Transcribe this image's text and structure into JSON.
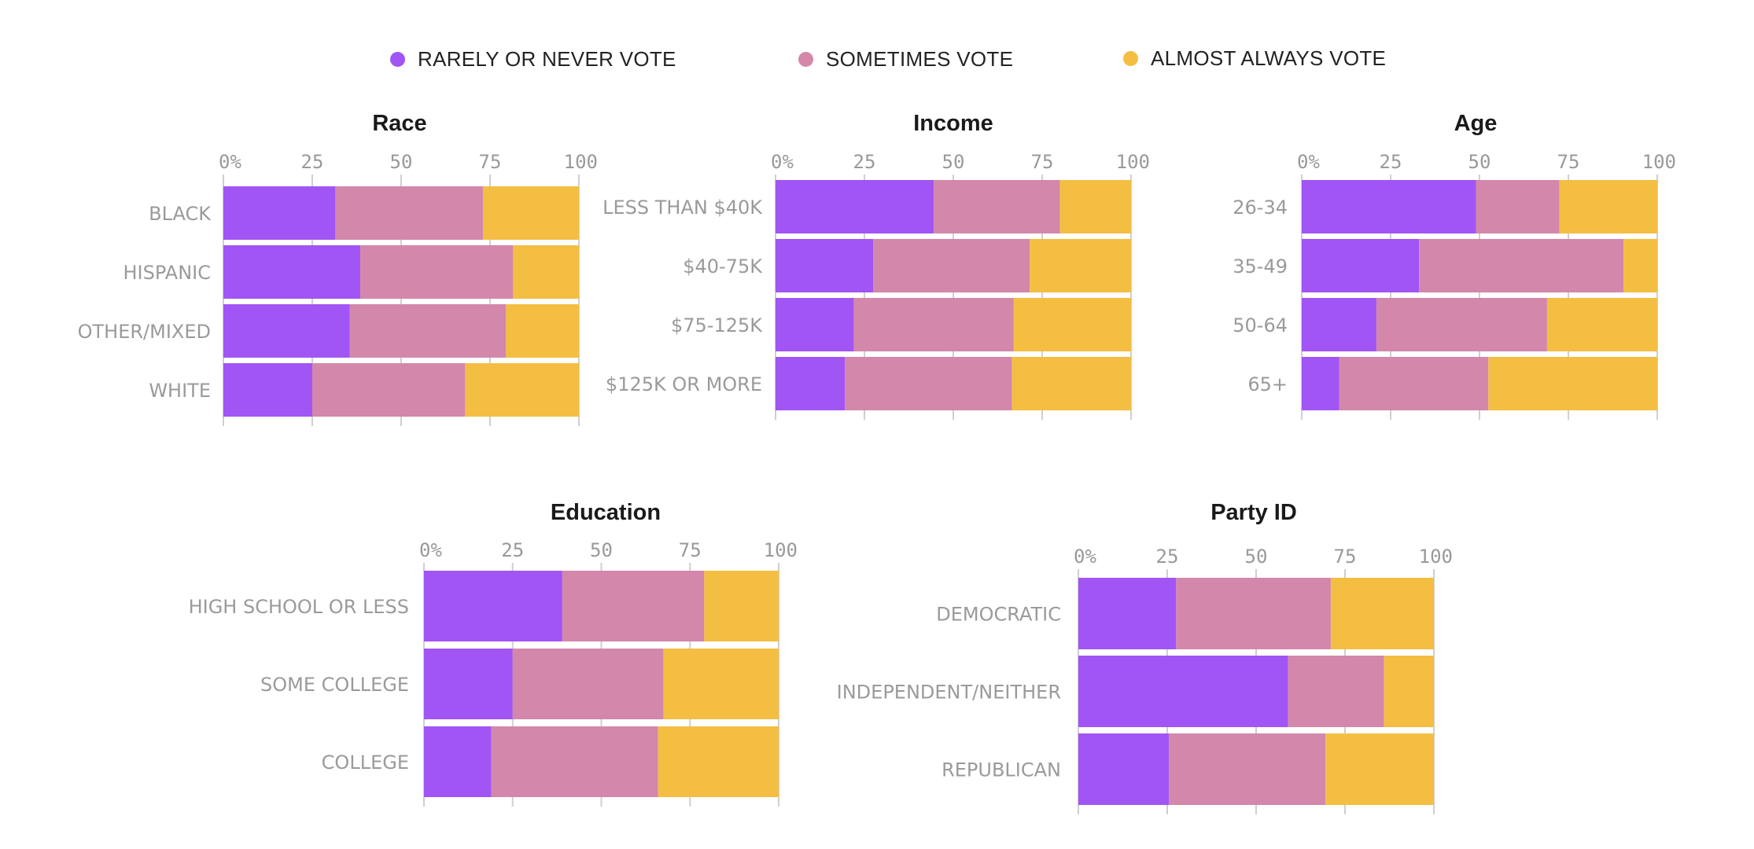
{
  "legend": [
    {
      "label": "RARELY OR NEVER VOTE",
      "color": "#a155f5"
    },
    {
      "label": "SOMETIMES VOTE",
      "color": "#d387ab"
    },
    {
      "label": "ALMOST ALWAYS VOTE",
      "color": "#f4be42"
    }
  ],
  "chart_data": [
    {
      "type": "bar",
      "stacked": true,
      "orientation": "horizontal",
      "title": "Race",
      "ticks": [
        "0%",
        "25",
        "50",
        "75",
        "100"
      ],
      "xlim": [
        0,
        100
      ],
      "categories": [
        "BLACK",
        "HISPANIC",
        "OTHER/MIXED",
        "WHITE"
      ],
      "series": [
        {
          "name": "RARELY OR NEVER VOTE",
          "values": [
            31.5,
            38.5,
            35.5,
            25
          ]
        },
        {
          "name": "SOMETIMES VOTE",
          "values": [
            41.5,
            43,
            44,
            43
          ]
        },
        {
          "name": "ALMOST ALWAYS VOTE",
          "values": [
            27,
            18.5,
            20.5,
            32
          ]
        }
      ]
    },
    {
      "type": "bar",
      "stacked": true,
      "orientation": "horizontal",
      "title": "Income",
      "ticks": [
        "0%",
        "25",
        "50",
        "75",
        "100"
      ],
      "xlim": [
        0,
        100
      ],
      "categories": [
        "LESS THAN $40K",
        "$40-75K",
        "$75-125K",
        "$125K OR MORE"
      ],
      "series": [
        {
          "name": "RARELY OR NEVER VOTE",
          "values": [
            44.5,
            27.5,
            22,
            19.5
          ]
        },
        {
          "name": "SOMETIMES VOTE",
          "values": [
            35.5,
            44,
            45,
            47
          ]
        },
        {
          "name": "ALMOST ALWAYS VOTE",
          "values": [
            20,
            28.5,
            33,
            33.5
          ]
        }
      ]
    },
    {
      "type": "bar",
      "stacked": true,
      "orientation": "horizontal",
      "title": "Age",
      "ticks": [
        "0%",
        "25",
        "50",
        "75",
        "100"
      ],
      "xlim": [
        0,
        100
      ],
      "categories": [
        "26-34",
        "35-49",
        "50-64",
        "65+"
      ],
      "series": [
        {
          "name": "RARELY OR NEVER VOTE",
          "values": [
            49,
            33,
            21,
            10.5
          ]
        },
        {
          "name": "SOMETIMES VOTE",
          "values": [
            23.5,
            57.5,
            48,
            42
          ]
        },
        {
          "name": "ALMOST ALWAYS VOTE",
          "values": [
            27.5,
            9.5,
            31,
            47.5
          ]
        }
      ]
    },
    {
      "type": "bar",
      "stacked": true,
      "orientation": "horizontal",
      "title": "Education",
      "ticks": [
        "0%",
        "25",
        "50",
        "75",
        "100"
      ],
      "xlim": [
        0,
        100
      ],
      "categories": [
        "HIGH SCHOOL OR LESS",
        "SOME COLLEGE",
        "COLLEGE"
      ],
      "series": [
        {
          "name": "RARELY OR NEVER VOTE",
          "values": [
            39,
            25,
            19
          ]
        },
        {
          "name": "SOMETIMES VOTE",
          "values": [
            40,
            42.5,
            47
          ]
        },
        {
          "name": "ALMOST ALWAYS VOTE",
          "values": [
            21,
            32.5,
            34
          ]
        }
      ]
    },
    {
      "type": "bar",
      "stacked": true,
      "orientation": "horizontal",
      "title": "Party ID",
      "ticks": [
        "0%",
        "25",
        "50",
        "75",
        "100"
      ],
      "xlim": [
        0,
        100
      ],
      "categories": [
        "DEMOCRATIC",
        "INDEPENDENT/NEITHER",
        "REPUBLICAN"
      ],
      "series": [
        {
          "name": "RARELY OR NEVER VOTE",
          "values": [
            27.5,
            59,
            25.5
          ]
        },
        {
          "name": "SOMETIMES VOTE",
          "values": [
            43.5,
            27,
            44
          ]
        },
        {
          "name": "ALMOST ALWAYS VOTE",
          "values": [
            29,
            14,
            30.5
          ]
        }
      ]
    }
  ]
}
